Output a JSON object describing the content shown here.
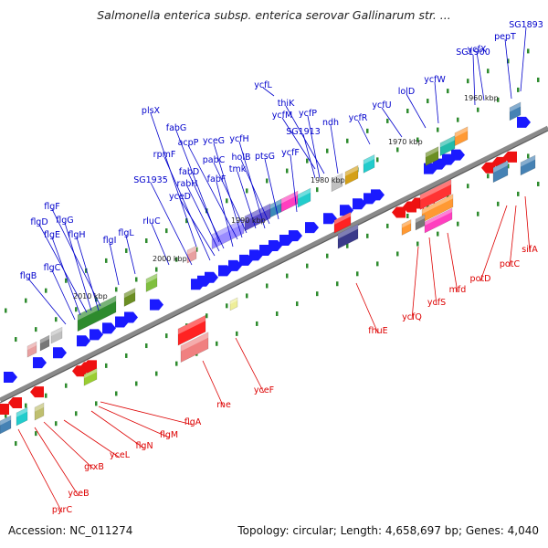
{
  "title": "Salmonella enterica subsp. enterica serovar Gallinarum str. ...",
  "accession_text": "Accession: NC_011274",
  "summary_text": "Topology: circular; Length: 4,658,697 bp; Genes: 4,040",
  "colors": {
    "upper_label": "#0000cc",
    "lower_label": "#dd0000",
    "backbone": "#8a8a8a",
    "tick": "#2e8b2e"
  },
  "kbp_labels": [
    "1960 kbp",
    "1970 kbp",
    "1980 kbp",
    "1990 kbp",
    "2000 kbp",
    "2010 kbp"
  ],
  "upper_genes": [
    "SG1893",
    "pepT",
    "ycfX",
    "SG1900",
    "ycfW",
    "lolD",
    "ycfU",
    "ycfR",
    "ycfL",
    "thiK",
    "ycfM",
    "ycfP",
    "ndh",
    "SG1913",
    "ycfF",
    "ptsG",
    "holB",
    "ycfH",
    "tmk",
    "pabC",
    "yceG",
    "acpP",
    "fabG",
    "fabF",
    "fabD",
    "rabH",
    "yceD",
    "plsX",
    "rpmF",
    "SG1935",
    "rluC",
    "flgL",
    "flgI",
    "flgF",
    "flgG",
    "flgD",
    "flgH",
    "flgE",
    "flgC",
    "flgB"
  ],
  "lower_genes": [
    "sifA",
    "potC",
    "potD",
    "mfd",
    "ycfS",
    "ycfQ",
    "fhuE",
    "yceF",
    "rne",
    "flgA",
    "flgM",
    "flgN",
    "yceL",
    "grxB",
    "yceB",
    "pyrC"
  ]
}
